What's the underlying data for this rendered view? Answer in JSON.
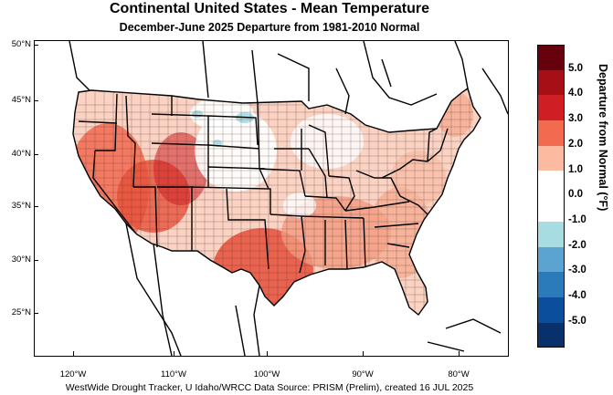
{
  "title": "Continental United States - Mean Temperature",
  "subtitle": "December-June 2025  Departure from 1981-2010 Normal",
  "lat_labels": [
    "50°N",
    "45°N",
    "40°N",
    "35°N",
    "30°N",
    "25°N"
  ],
  "lon_labels": [
    "120°W",
    "110°W",
    "100°W",
    "90°W",
    "80°W"
  ],
  "colorbar": {
    "title": "Departure from Normal (°F)",
    "tick_labels": [
      "5.0",
      "4.0",
      "3.0",
      "2.0",
      "1.0",
      "0.0",
      "-1.0",
      "-2.0",
      "-3.0",
      "-4.0",
      "-5.0"
    ],
    "colors": [
      "#67000d",
      "#a50f15",
      "#d01f24",
      "#f26a4f",
      "#fcbba1",
      "#ffffff",
      "#ffffff",
      "#a8dce3",
      "#5ba3d0",
      "#2b7bba",
      "#0b4f9c",
      "#08306b"
    ]
  },
  "footer": "WestWide Drought Tracker, U Idaho/WRCC Data Source: PRISM (Prelim), created 16 JUL 2025"
}
